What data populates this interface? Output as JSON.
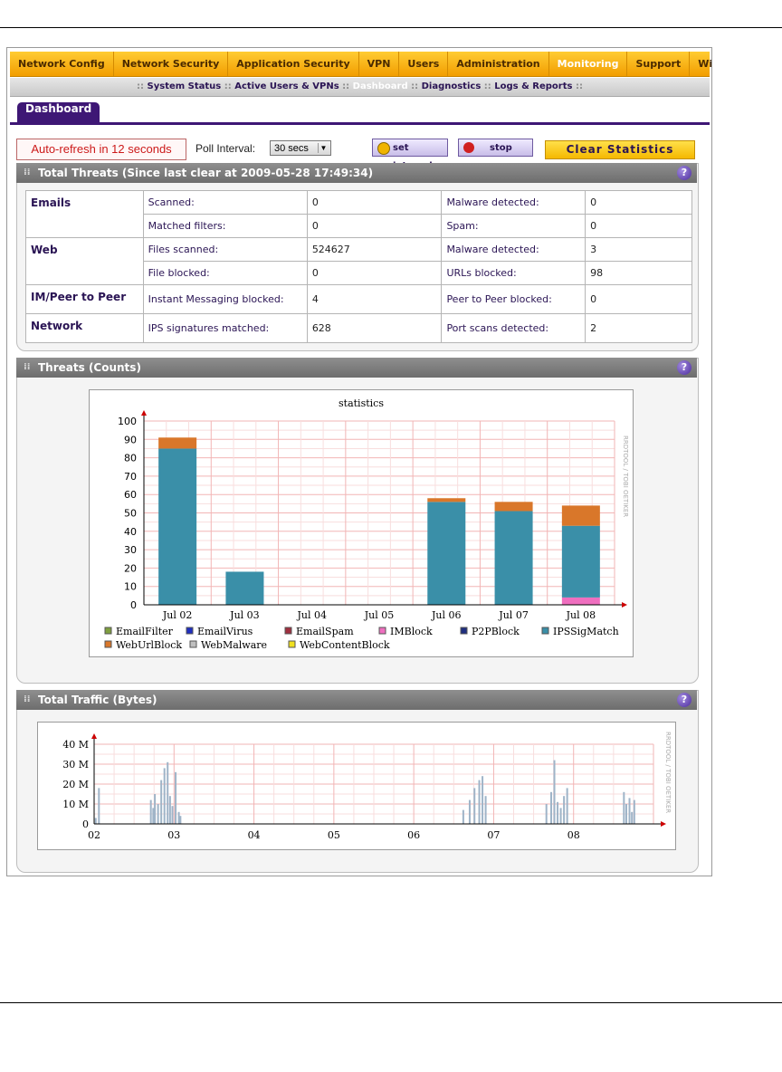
{
  "nav": {
    "items": [
      "Network Config",
      "Network Security",
      "Application Security",
      "VPN",
      "Users",
      "Administration",
      "Monitoring",
      "Support",
      "Wizards"
    ],
    "active": "Monitoring"
  },
  "subnav": {
    "items": [
      "System Status",
      "Active Users & VPNs",
      "Dashboard",
      "Diagnostics",
      "Logs & Reports"
    ],
    "active": "Dashboard"
  },
  "tab": {
    "label": "Dashboard"
  },
  "controls": {
    "autorefresh": "Auto-refresh in 12 seconds",
    "poll_label": "Poll Interval:",
    "poll_value": "30 secs",
    "set_interval": "set interval",
    "stop": "stop",
    "clear": "Clear Statistics"
  },
  "total_threats": {
    "title": "Total Threats (Since last clear at 2009-05-28 17:49:34)",
    "rows": [
      {
        "cat": "Emails",
        "l1": "Scanned:",
        "v1": "0",
        "l2": "Malware detected:",
        "v2": "0"
      },
      {
        "cat": "",
        "l1": "Matched filters:",
        "v1": "0",
        "l2": "Spam:",
        "v2": "0"
      },
      {
        "cat": "Web",
        "l1": "Files scanned:",
        "v1": "524627",
        "l2": "Malware detected:",
        "v2": "3"
      },
      {
        "cat": "",
        "l1": "File blocked:",
        "v1": "0",
        "l2": "URLs blocked:",
        "v2": "98"
      },
      {
        "cat": "IM/Peer to Peer",
        "l1": "Instant Messaging blocked:",
        "v1": "4",
        "l2": "Peer to Peer blocked:",
        "v2": "0"
      },
      {
        "cat": "Network",
        "l1": "IPS signatures matched:",
        "v1": "628",
        "l2": "Port scans detected:",
        "v2": "2"
      }
    ]
  },
  "threats_counts": {
    "title": "Threats (Counts)"
  },
  "total_traffic": {
    "title": "Total Traffic (Bytes)"
  },
  "watermark": "RRDTOOL / TOBI OETIKER",
  "colors": {
    "EmailFilter": "#7f9f3f",
    "EmailVirus": "#1f2fbf",
    "EmailSpam": "#9f2f3f",
    "IMBlock": "#ef6fbf",
    "P2PBlock": "#1f2f7f",
    "IPSSigMatch": "#3a8fa8",
    "WebUrlBlock": "#d9772a",
    "WebMalware": "#bfbfbf",
    "WebContentBlock": "#f0e020"
  },
  "chart_data": [
    {
      "type": "bar",
      "title": "statistics",
      "categories": [
        "Jul 02",
        "Jul 03",
        "Jul 04",
        "Jul 05",
        "Jul 06",
        "Jul 07",
        "Jul 08"
      ],
      "ylim": [
        0,
        100
      ],
      "yticks": [
        0,
        10,
        20,
        30,
        40,
        50,
        60,
        70,
        80,
        90,
        100
      ],
      "legend": [
        "EmailFilter",
        "EmailVirus",
        "EmailSpam",
        "IMBlock",
        "P2PBlock",
        "IPSSigMatch",
        "WebUrlBlock",
        "WebMalware",
        "WebContentBlock"
      ],
      "series": [
        {
          "name": "IMBlock",
          "values": [
            0,
            0,
            0,
            0,
            0,
            0,
            4
          ]
        },
        {
          "name": "IPSSigMatch",
          "values": [
            85,
            18,
            0,
            0,
            56,
            51,
            39
          ]
        },
        {
          "name": "WebUrlBlock",
          "values": [
            6,
            0,
            0,
            0,
            2,
            5,
            11
          ]
        }
      ]
    },
    {
      "type": "area",
      "title": "",
      "xticks": [
        "02",
        "03",
        "04",
        "05",
        "06",
        "07",
        "08"
      ],
      "yticks": [
        "0",
        "10 M",
        "20 M",
        "30 M",
        "40 M"
      ],
      "ylim": [
        0,
        40
      ],
      "series": [
        {
          "name": "traffic",
          "x": [
            0.02,
            0.06,
            0.71,
            0.74,
            0.76,
            0.8,
            0.84,
            0.88,
            0.92,
            0.95,
            0.98,
            1.02,
            1.06,
            1.08,
            4.62,
            4.7,
            4.76,
            4.82,
            4.86,
            4.9,
            5.66,
            5.72,
            5.76,
            5.8,
            5.84,
            5.88,
            5.92,
            6.63,
            6.66,
            6.7,
            6.73,
            6.76
          ],
          "y": [
            3,
            18,
            12,
            8,
            15,
            10,
            22,
            28,
            31,
            14,
            9,
            26,
            6,
            4,
            7,
            12,
            18,
            22,
            24,
            14,
            10,
            16,
            32,
            11,
            8,
            14,
            18,
            16,
            10,
            13,
            6,
            12
          ]
        }
      ]
    }
  ]
}
